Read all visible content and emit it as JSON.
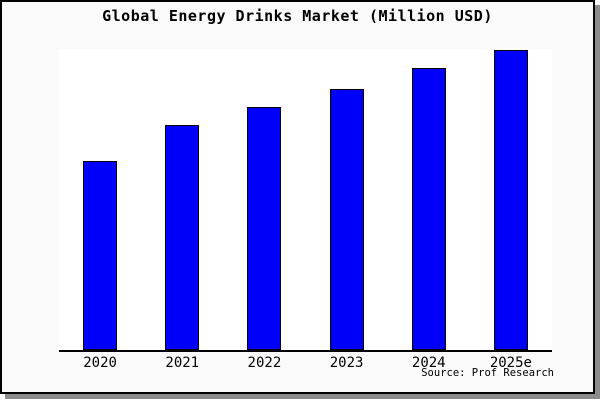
{
  "chart_data": {
    "type": "bar",
    "title": "Global Energy Drinks Market (Million USD)",
    "categories": [
      "2020",
      "2021",
      "2022",
      "2023",
      "2024",
      "2025e"
    ],
    "values": [
      63,
      75,
      81,
      87,
      94,
      100
    ],
    "units": "relative height, % of tallest bar (no y-axis tick labels shown in image)",
    "xlabel": "",
    "ylabel": "",
    "ylim": [
      0,
      100.3
    ],
    "grid": false,
    "legend": false,
    "bar_color": "#0000fa",
    "bar_edge_color": "#000000",
    "plot_background": "#ffffff",
    "card_background": "#fafafa",
    "frame_border_color": "#000000",
    "shadow_color": "#8c8c8c"
  },
  "source": {
    "text": "Source: Prof Research"
  }
}
